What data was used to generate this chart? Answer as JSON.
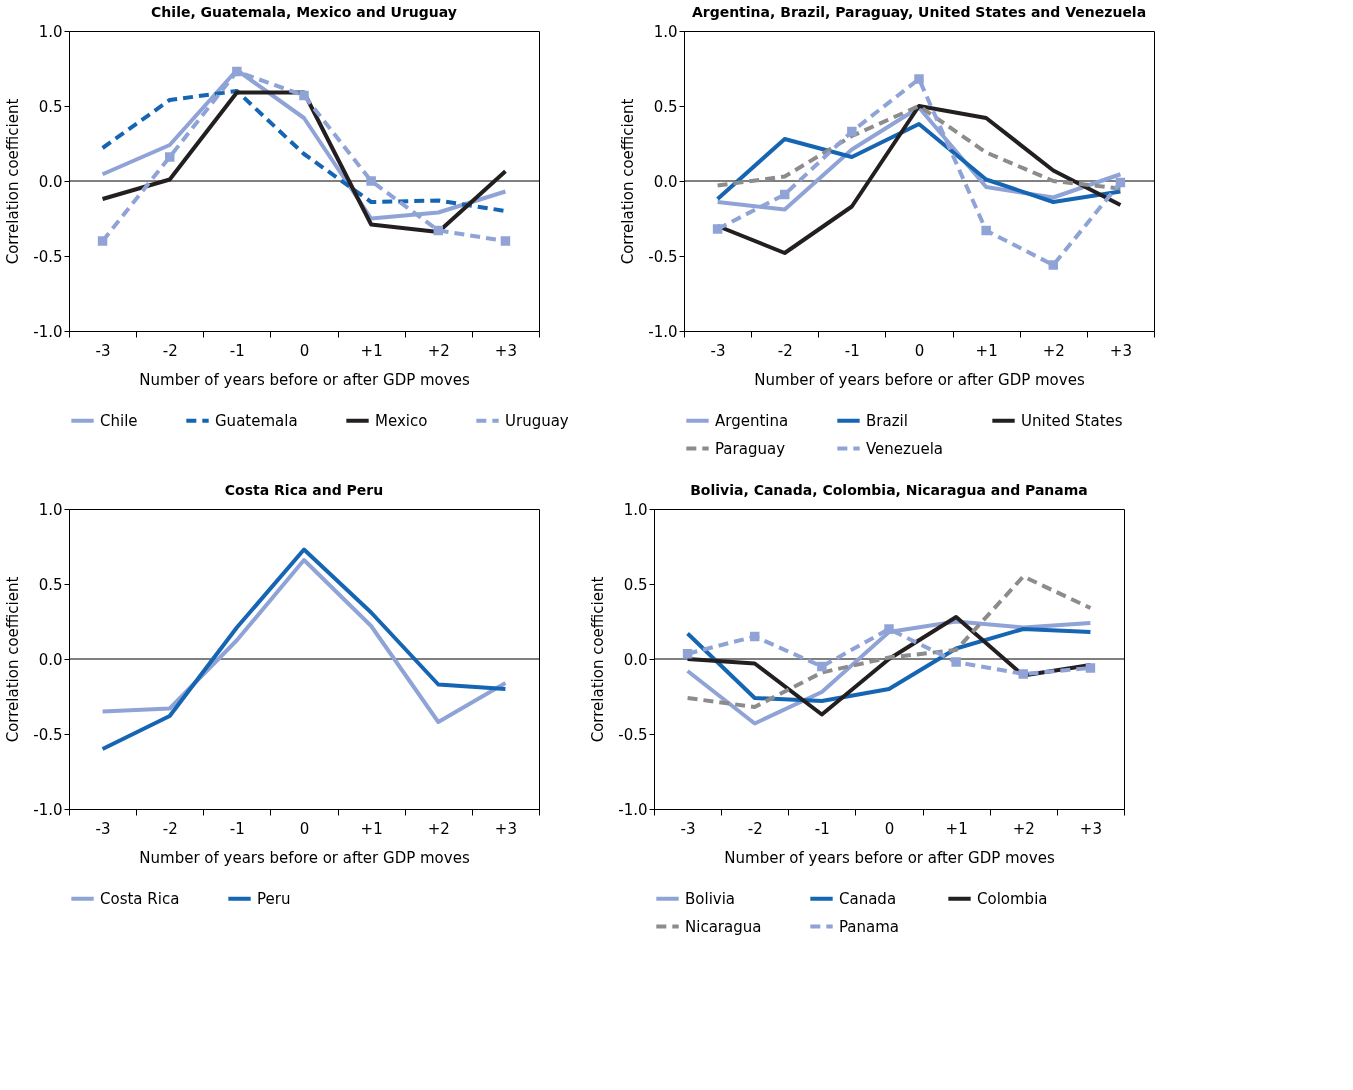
{
  "chart_data": [
    {
      "type": "line",
      "title": "Chile, Guatemala, Mexico and Uruguay",
      "xlabel": "Number of years before or after GDP moves",
      "ylabel": "Correlation coefficient",
      "categories": [
        "-3",
        "-2",
        "-1",
        "0",
        "+1",
        "+2",
        "+3"
      ],
      "ylim": [
        -1,
        1
      ],
      "yticks": [
        {
          "value": -1,
          "label": "-1.0"
        },
        {
          "value": -0.5,
          "label": "-0.5"
        },
        {
          "value": 0,
          "label": "0.0"
        },
        {
          "value": 0.5,
          "label": "0.5"
        },
        {
          "value": 1,
          "label": "1.0"
        }
      ],
      "grid": false,
      "legend": "bottom",
      "ref_lines": [
        {
          "axis": "y",
          "value": 0
        }
      ],
      "series": [
        {
          "name": "Chile",
          "color": "#8fa3d6",
          "line_style": "solid",
          "values": [
            0.045,
            0.24,
            0.74,
            0.42,
            -0.25,
            -0.21,
            -0.07
          ]
        },
        {
          "name": "Guatemala",
          "color": "#1565b3",
          "line_style": "dashed",
          "values": [
            0.22,
            0.54,
            0.6,
            0.18,
            -0.14,
            -0.13,
            -0.2
          ]
        },
        {
          "name": "Mexico",
          "color": "#231f20",
          "line_style": "solid",
          "values": [
            -0.12,
            0.01,
            0.59,
            0.59,
            -0.29,
            -0.34,
            0.065
          ]
        },
        {
          "name": "Uruguay",
          "color": "#8fa3d6",
          "line_style": "dashed",
          "marker": "square",
          "values": [
            -0.4,
            0.16,
            0.73,
            0.57,
            0.0,
            -0.33,
            -0.4
          ]
        }
      ]
    },
    {
      "type": "line",
      "title": "Argentina, Brazil, Paraguay, United States and Venezuela",
      "xlabel": "Number of years before or after GDP moves",
      "ylabel": "Correlation coefficient",
      "categories": [
        "-3",
        "-2",
        "-1",
        "0",
        "+1",
        "+2",
        "+3"
      ],
      "ylim": [
        -1,
        1
      ],
      "yticks": [
        {
          "value": -1,
          "label": "-1.0"
        },
        {
          "value": -0.5,
          "label": "-0.5"
        },
        {
          "value": 0,
          "label": "0.0"
        },
        {
          "value": 0.5,
          "label": "0.5"
        },
        {
          "value": 1,
          "label": "1.0"
        }
      ],
      "grid": false,
      "legend": "bottom",
      "ref_lines": [
        {
          "axis": "y",
          "value": 0
        }
      ],
      "series": [
        {
          "name": "Argentina",
          "color": "#8fa3d6",
          "line_style": "solid",
          "values": [
            -0.14,
            -0.19,
            0.21,
            0.49,
            -0.04,
            -0.11,
            0.045
          ]
        },
        {
          "name": "Brazil",
          "color": "#1565b3",
          "line_style": "solid",
          "values": [
            -0.12,
            0.28,
            0.16,
            0.38,
            0.01,
            -0.14,
            -0.07
          ]
        },
        {
          "name": "United States",
          "color": "#231f20",
          "line_style": "solid",
          "values": [
            -0.3,
            -0.48,
            -0.17,
            0.5,
            0.42,
            0.07,
            -0.16
          ]
        },
        {
          "name": "Paraguay",
          "color": "#8c8c8c",
          "line_style": "dashed",
          "values": [
            -0.03,
            0.03,
            0.3,
            0.5,
            0.19,
            0.0,
            -0.05
          ]
        },
        {
          "name": "Venezuela",
          "color": "#8fa3d6",
          "line_style": "dashed",
          "marker": "square",
          "values": [
            -0.32,
            -0.09,
            0.33,
            0.68,
            -0.33,
            -0.56,
            -0.01
          ]
        }
      ]
    },
    {
      "type": "line",
      "title": "Costa Rica and Peru",
      "xlabel": "Number of years before or after GDP moves",
      "ylabel": "Correlation coefficient",
      "categories": [
        "-3",
        "-2",
        "-1",
        "0",
        "+1",
        "+2",
        "+3"
      ],
      "ylim": [
        -1,
        1
      ],
      "yticks": [
        {
          "value": -1,
          "label": "-1.0"
        },
        {
          "value": -0.5,
          "label": "-0.5"
        },
        {
          "value": 0,
          "label": "0.0"
        },
        {
          "value": 0.5,
          "label": "0.5"
        },
        {
          "value": 1,
          "label": "1.0"
        }
      ],
      "grid": false,
      "legend": "bottom",
      "ref_lines": [
        {
          "axis": "y",
          "value": 0
        }
      ],
      "series": [
        {
          "name": "Costa Rica",
          "color": "#8fa3d6",
          "line_style": "solid",
          "values": [
            -0.35,
            -0.33,
            0.125,
            0.66,
            0.22,
            -0.42,
            -0.16
          ]
        },
        {
          "name": "Peru",
          "color": "#1565b3",
          "line_style": "solid",
          "values": [
            -0.6,
            -0.38,
            0.21,
            0.73,
            0.31,
            -0.17,
            -0.2
          ]
        }
      ]
    },
    {
      "type": "line",
      "title": "Bolivia, Canada, Colombia, Nicaragua and Panama",
      "xlabel": "Number of years before or after GDP moves",
      "ylabel": "Correlation coefficient",
      "categories": [
        "-3",
        "-2",
        "-1",
        "0",
        "+1",
        "+2",
        "+3"
      ],
      "ylim": [
        -1,
        1
      ],
      "yticks": [
        {
          "value": -1,
          "label": "-1.0"
        },
        {
          "value": -0.5,
          "label": "-0.5"
        },
        {
          "value": 0,
          "label": "0.0"
        },
        {
          "value": 0.5,
          "label": "0.5"
        },
        {
          "value": 1,
          "label": "1.0"
        }
      ],
      "grid": false,
      "legend": "bottom",
      "ref_lines": [
        {
          "axis": "y",
          "value": 0
        }
      ],
      "series": [
        {
          "name": "Bolivia",
          "color": "#8fa3d6",
          "line_style": "solid",
          "values": [
            -0.08,
            -0.43,
            -0.22,
            0.18,
            0.25,
            0.21,
            0.24
          ]
        },
        {
          "name": "Canada",
          "color": "#1565b3",
          "line_style": "solid",
          "values": [
            0.17,
            -0.26,
            -0.28,
            -0.2,
            0.07,
            0.2,
            0.18
          ]
        },
        {
          "name": "Colombia",
          "color": "#231f20",
          "line_style": "solid",
          "values": [
            0.0,
            -0.03,
            -0.37,
            0.0,
            0.28,
            -0.11,
            -0.04
          ]
        },
        {
          "name": "Nicaragua",
          "color": "#8c8c8c",
          "line_style": "dashed",
          "values": [
            -0.26,
            -0.32,
            -0.09,
            0.01,
            0.06,
            0.55,
            0.34
          ]
        },
        {
          "name": "Panama",
          "color": "#8fa3d6",
          "line_style": "dashed",
          "marker": "square",
          "values": [
            0.035,
            0.15,
            -0.05,
            0.2,
            -0.02,
            -0.1,
            -0.06
          ]
        }
      ]
    }
  ]
}
